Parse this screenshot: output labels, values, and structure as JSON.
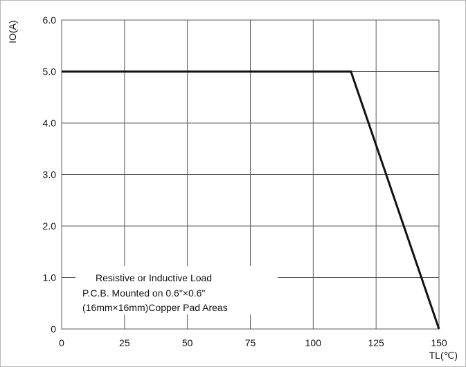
{
  "chart_data": {
    "type": "line",
    "title": "",
    "xlabel": "TL(℃)",
    "ylabel": "IO(A)",
    "xlim": [
      0,
      150
    ],
    "ylim": [
      0,
      6
    ],
    "grid": true,
    "x_ticks": [
      "0",
      "25",
      "50",
      "75",
      "100",
      "125",
      "150"
    ],
    "x_tick_values": [
      0,
      25,
      50,
      75,
      100,
      125,
      150
    ],
    "y_ticks": [
      "0",
      "1.0",
      "2.0",
      "3.0",
      "4.0",
      "5.0",
      "6.0"
    ],
    "y_tick_values": [
      0,
      1,
      2,
      3,
      4,
      5,
      6
    ],
    "series": [
      {
        "x": [
          0,
          115,
          150
        ],
        "y": [
          5.0,
          5.0,
          0
        ]
      }
    ],
    "annotation": [
      "Resistive or Inductive Load",
      "P.C.B. Mounted on 0.6\"×0.6\"",
      "(16mm×16mm)Copper Pad Areas"
    ],
    "line_color": "#111111",
    "grid_color": "#5a5a5a"
  }
}
